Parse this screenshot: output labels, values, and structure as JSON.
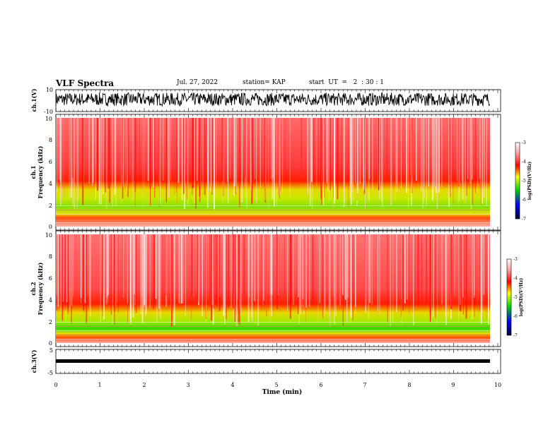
{
  "header": {
    "title": "VLF Spectra",
    "date": "Jul. 27, 2022",
    "station": "station= KAP",
    "start": "start  UT  =   2  : 30 : 1"
  },
  "colors": {
    "colormap": [
      "#ffffff",
      "#ff9a9a",
      "#ff0000",
      "#ffff00",
      "#00d800",
      "#0000ff",
      "#000033"
    ],
    "trace": "#000000"
  },
  "chart_data": [
    {
      "type": "line",
      "name": "ch1-waveform",
      "ylabel": "ch.1(V)",
      "ylim": [
        -10,
        10
      ],
      "yticks": [
        "10",
        "-10"
      ],
      "xlim": [
        0,
        10
      ],
      "note_visible": "dense black noise trace spanning roughly -6 to +8 V"
    },
    {
      "type": "heatmap",
      "name": "ch1-spectrogram",
      "ylabel": "ch.1\nFrequency (kHz)",
      "ylim": [
        0,
        10
      ],
      "yticks": [
        "0",
        "2",
        "4",
        "6",
        "8",
        "10"
      ],
      "xlim": [
        0,
        9.8
      ],
      "bands_khz": {
        "green_yellow": [
          1.0,
          3.2
        ],
        "red": [
          0,
          10
        ]
      },
      "colorbar": {
        "label": "log(PSD)(V²/Hz)",
        "range": [
          -7,
          -3
        ],
        "ticks": [
          "-3",
          "-4",
          "-5",
          "-6",
          "-7"
        ]
      }
    },
    {
      "type": "heatmap",
      "name": "ch2-spectrogram",
      "ylabel": "ch.2\nFrequency (kHz)",
      "ylim": [
        0,
        10
      ],
      "yticks": [
        "0",
        "2",
        "4",
        "6",
        "8",
        "10"
      ],
      "xlim": [
        0,
        9.8
      ],
      "bands_khz": {
        "green_yellow": [
          0.8,
          2.8
        ],
        "red": [
          0,
          10
        ]
      },
      "colorbar": {
        "label": "log(PSD)(V²/Hz)",
        "range": [
          -7,
          -3
        ],
        "ticks": [
          "-3",
          "-4",
          "-5",
          "-6",
          "-7"
        ]
      }
    },
    {
      "type": "line",
      "name": "ch3-waveform",
      "ylabel": "ch.3(V)",
      "ylim": [
        -5,
        5
      ],
      "yticks": [
        "5",
        "-5"
      ],
      "xlim": [
        0,
        10
      ],
      "note_visible": "flat thick black band near -2 V"
    }
  ],
  "xaxis": {
    "label": "Time (min)",
    "ticks": [
      "0",
      "1",
      "2",
      "3",
      "4",
      "5",
      "6",
      "7",
      "8",
      "9",
      "10"
    ],
    "range": [
      0,
      10
    ]
  }
}
